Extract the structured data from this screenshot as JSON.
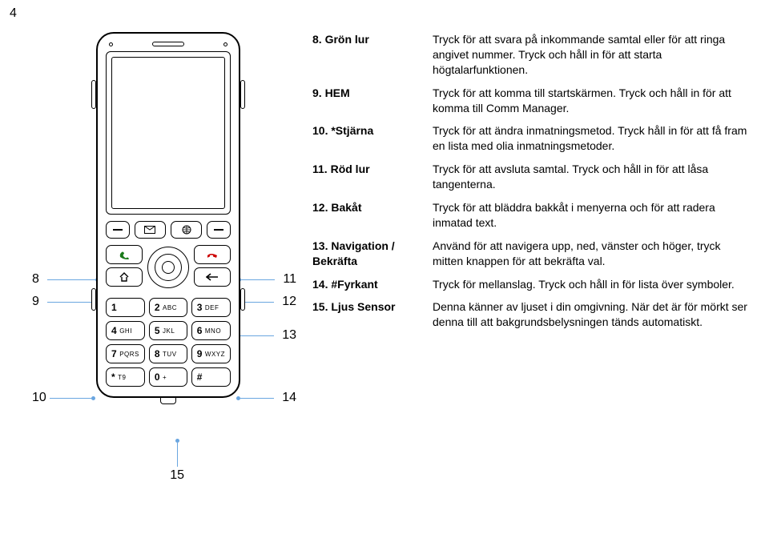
{
  "page_number": "4",
  "callouts": {
    "left": [
      "8",
      "9",
      "10"
    ],
    "right": [
      "11",
      "12",
      "13",
      "14",
      "15"
    ]
  },
  "colors": {
    "leader_line": "#6aa6e0",
    "green_handset": "#1a7a1a",
    "red_handset": "#c00000",
    "text": "#000000",
    "background": "#ffffff"
  },
  "phone": {
    "keypad": [
      {
        "d": "1",
        "s": ""
      },
      {
        "d": "2",
        "s": "ABC"
      },
      {
        "d": "3",
        "s": "DEF"
      },
      {
        "d": "4",
        "s": "GHI"
      },
      {
        "d": "5",
        "s": "JKL"
      },
      {
        "d": "6",
        "s": "MNO"
      },
      {
        "d": "7",
        "s": "PQRS"
      },
      {
        "d": "8",
        "s": "TUV"
      },
      {
        "d": "9",
        "s": "WXYZ"
      },
      {
        "d": "*",
        "s": "T9"
      },
      {
        "d": "0",
        "s": "+"
      },
      {
        "d": "#",
        "s": ""
      }
    ],
    "softkeys": [
      "—",
      "✉",
      "ⓘ",
      "—"
    ],
    "call_left": [
      "call-icon",
      "home-icon"
    ],
    "call_right": [
      "end-icon",
      "back-icon"
    ]
  },
  "entries": [
    {
      "label": "8. Grön lur",
      "desc": "Tryck för att svara på inkommande samtal eller för att ringa angivet nummer. Tryck och håll in för att starta högtalarfunktionen."
    },
    {
      "label": "9. HEM",
      "desc": "Tryck för att komma till startskärmen. Tryck och håll in för att komma till Comm Manager."
    },
    {
      "label": "10. *Stjärna",
      "desc": "Tryck för att ändra inmatningsmetod. Tryck håll in för att få fram en lista med olia inmatningsmetoder."
    },
    {
      "label": "11. Röd lur",
      "desc": "Tryck för att avsluta samtal. Tryck och håll in för att låsa tangenterna."
    },
    {
      "label": "12. Bakåt",
      "desc": "Tryck för att bläddra bakkåt i menyerna och för att radera inmatad text."
    },
    {
      "label": "13. Navigation / Bekräfta",
      "desc": "Använd för att navigera upp, ned, vänster och höger, tryck mitten knappen för att bekräfta val."
    },
    {
      "label": "14. #Fyrkant",
      "desc": "Tryck för mellanslag. Tryck och håll in för lista över symboler."
    },
    {
      "label": "15. Ljus Sensor",
      "desc": "Denna känner av ljuset i din omgivning. När det är för mörkt ser denna till att bakgrundsbelysningen tänds automatiskt."
    }
  ]
}
